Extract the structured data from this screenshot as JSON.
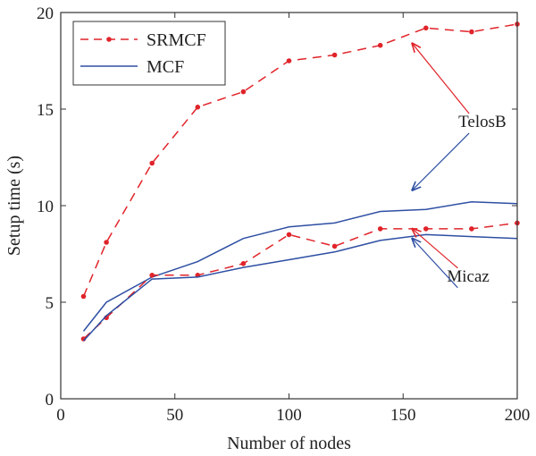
{
  "chart_data": {
    "type": "line",
    "title": "",
    "xlabel": "Number of nodes",
    "ylabel": "Setup time (s)",
    "xlim": [
      0,
      200
    ],
    "ylim": [
      0,
      20
    ],
    "xticks": [
      0,
      50,
      100,
      150,
      200
    ],
    "yticks": [
      0,
      5,
      10,
      15,
      20
    ],
    "xtick_labels": [
      "0",
      "50",
      "100",
      "150",
      "200"
    ],
    "ytick_labels": [
      "0",
      "5",
      "10",
      "15",
      "20"
    ],
    "grid": false,
    "legend": {
      "placement": "top-left",
      "entries": [
        {
          "label": "SRMCF",
          "style": "dashed-dots",
          "color": "#e0242a"
        },
        {
          "label": "MCF",
          "style": "solid",
          "color": "#2e4fa3"
        }
      ]
    },
    "series": [
      {
        "legend": "SRMCF",
        "group": "TelosB",
        "color": "#e0242a",
        "style": "dashed-dots",
        "x": [
          10,
          20,
          40,
          60,
          80,
          100,
          120,
          140,
          160,
          180,
          200
        ],
        "y": [
          5.3,
          8.1,
          12.2,
          15.1,
          15.9,
          17.5,
          17.8,
          18.3,
          19.2,
          19.0,
          19.4
        ]
      },
      {
        "legend": "MCF",
        "group": "TelosB",
        "color": "#2e4fa3",
        "style": "solid",
        "x": [
          10,
          20,
          40,
          60,
          80,
          100,
          120,
          140,
          160,
          180,
          200
        ],
        "y": [
          3.5,
          5.0,
          6.3,
          7.1,
          8.3,
          8.9,
          9.1,
          9.7,
          9.8,
          10.2,
          10.1
        ]
      },
      {
        "legend": "SRMCF",
        "group": "Micaz",
        "color": "#e0242a",
        "style": "dashed-dots",
        "x": [
          10,
          20,
          40,
          60,
          80,
          100,
          120,
          140,
          160,
          180,
          200
        ],
        "y": [
          3.1,
          4.2,
          6.4,
          6.4,
          7.0,
          8.5,
          7.9,
          8.8,
          8.8,
          8.8,
          9.1
        ]
      },
      {
        "legend": "MCF",
        "group": "Micaz",
        "color": "#2e4fa3",
        "style": "solid",
        "x": [
          10,
          20,
          40,
          60,
          80,
          100,
          120,
          140,
          160,
          180,
          200
        ],
        "y": [
          3.0,
          4.3,
          6.2,
          6.3,
          6.8,
          7.2,
          7.6,
          8.2,
          8.5,
          8.4,
          8.3
        ]
      }
    ],
    "annotations": [
      {
        "text": "TelosB",
        "anchor": {
          "x": 175,
          "y": 14.4
        },
        "arrow_targets": [
          {
            "x": 154,
            "y": 18.4,
            "color": "#e0242a"
          },
          {
            "x": 154,
            "y": 10.8,
            "color": "#2e4fa3"
          }
        ]
      },
      {
        "text": "Micaz",
        "anchor": {
          "x": 170,
          "y": 6.4
        },
        "arrow_targets": [
          {
            "x": 154,
            "y": 8.8,
            "color": "#e0242a"
          },
          {
            "x": 154,
            "y": 8.3,
            "color": "#2e4fa3"
          }
        ]
      }
    ]
  }
}
